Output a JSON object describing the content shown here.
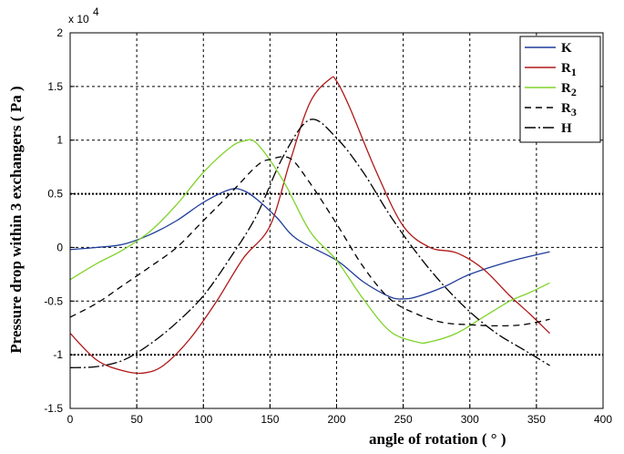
{
  "chart_data": {
    "type": "line",
    "title": "",
    "xlabel": "angle of rotation ( ° )",
    "ylabel": "Pressure drop within 3 exchangers ( Pa )",
    "y_multiplier_label": "x 10",
    "y_multiplier_exponent": "4",
    "xlim": [
      0,
      400
    ],
    "ylim": [
      -1.5,
      2
    ],
    "xticks": [
      "0",
      "50",
      "100",
      "150",
      "200",
      "250",
      "300",
      "350",
      "400"
    ],
    "yticks": [
      "-1.5",
      "-1",
      "-0.5",
      "0",
      "0.5",
      "1",
      "1.5",
      "2"
    ],
    "grid": true,
    "legend_position": "top-right",
    "series": [
      {
        "name": "K",
        "label_main": "K",
        "label_sub": "",
        "color": "#1f3c99",
        "dash": "solid",
        "x": [
          0,
          20,
          40,
          60,
          80,
          100,
          120,
          130,
          140,
          155,
          170,
          200,
          220,
          240,
          250,
          260,
          280,
          300,
          330,
          360
        ],
        "y": [
          -0.02,
          0.0,
          0.03,
          0.12,
          0.25,
          0.42,
          0.54,
          0.53,
          0.45,
          0.28,
          0.08,
          -0.12,
          -0.32,
          -0.46,
          -0.48,
          -0.46,
          -0.37,
          -0.25,
          -0.13,
          -0.04
        ]
      },
      {
        "name": "R1",
        "label_main": "R",
        "label_sub": "1",
        "color": "#b01818",
        "dash": "solid",
        "x": [
          0,
          20,
          40,
          55,
          70,
          90,
          110,
          130,
          150,
          165,
          180,
          195,
          200,
          210,
          230,
          250,
          270,
          290,
          310,
          330,
          345,
          360
        ],
        "y": [
          -0.8,
          -1.05,
          -1.15,
          -1.17,
          -1.1,
          -0.85,
          -0.5,
          -0.1,
          0.2,
          0.8,
          1.35,
          1.57,
          1.55,
          1.3,
          0.7,
          0.2,
          0.0,
          -0.05,
          -0.2,
          -0.45,
          -0.62,
          -0.8
        ]
      },
      {
        "name": "R2",
        "label_main": "R",
        "label_sub": "2",
        "color": "#7fd32a",
        "dash": "solid",
        "x": [
          0,
          20,
          40,
          60,
          80,
          100,
          120,
          130,
          140,
          160,
          180,
          200,
          220,
          240,
          260,
          270,
          290,
          310,
          330,
          345,
          360
        ],
        "y": [
          -0.3,
          -0.15,
          -0.02,
          0.15,
          0.4,
          0.7,
          0.93,
          0.99,
          0.97,
          0.62,
          0.15,
          -0.12,
          -0.48,
          -0.78,
          -0.88,
          -0.88,
          -0.8,
          -0.65,
          -0.5,
          -0.42,
          -0.33
        ]
      },
      {
        "name": "R3",
        "label_main": "R",
        "label_sub": "3",
        "color": "#000000",
        "dash": "7,5",
        "x": [
          0,
          20,
          40,
          60,
          80,
          100,
          120,
          140,
          150,
          165,
          180,
          200,
          220,
          240,
          260,
          280,
          300,
          320,
          340,
          360
        ],
        "y": [
          -0.65,
          -0.52,
          -0.35,
          -0.18,
          0.0,
          0.25,
          0.5,
          0.76,
          0.82,
          0.83,
          0.6,
          0.22,
          -0.18,
          -0.48,
          -0.62,
          -0.7,
          -0.72,
          -0.73,
          -0.72,
          -0.67
        ]
      },
      {
        "name": "H",
        "label_main": "H",
        "label_sub": "",
        "color": "#000000",
        "dash": "12,3,2,3",
        "x": [
          0,
          20,
          40,
          60,
          80,
          100,
          120,
          140,
          160,
          180,
          200,
          220,
          240,
          260,
          280,
          300,
          320,
          340,
          360
        ],
        "y": [
          -1.12,
          -1.11,
          -1.05,
          -0.9,
          -0.7,
          -0.45,
          -0.1,
          0.3,
          0.85,
          1.19,
          1.02,
          0.7,
          0.3,
          -0.05,
          -0.35,
          -0.6,
          -0.8,
          -0.95,
          -1.1
        ]
      }
    ]
  }
}
